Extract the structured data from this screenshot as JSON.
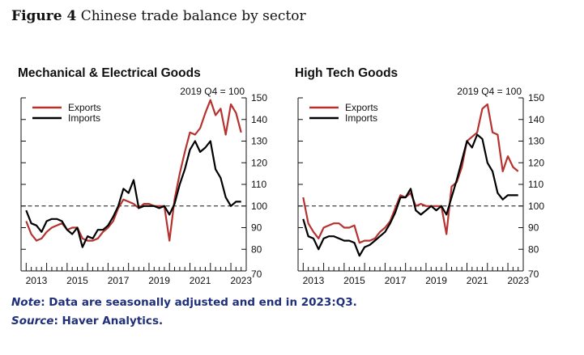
{
  "figure": {
    "label": "Figure 4",
    "title": "Chinese trade balance by sector"
  },
  "note": {
    "label": "Note",
    "text": ": Data are seasonally adjusted and end in 2023:Q3."
  },
  "source": {
    "label": "Source",
    "text": ": Haver Analytics."
  },
  "colors": {
    "exports": "#b5322f",
    "imports": "#000000"
  },
  "chart_data": [
    {
      "type": "line",
      "title": "Mechanical & Electrical Goods",
      "units_label": "2019 Q4 = 100",
      "ylim": [
        70,
        150
      ],
      "yticks": [
        70,
        80,
        90,
        100,
        110,
        120,
        130,
        140,
        150
      ],
      "xlim": [
        2012.75,
        2023.75
      ],
      "xticks": [
        "2013",
        "2015",
        "2017",
        "2019",
        "2021",
        "2023"
      ],
      "reference_line": 100,
      "legend": "top-left",
      "series": [
        {
          "name": "Exports",
          "x": [
            2013.0,
            2013.25,
            2013.5,
            2013.75,
            2014.0,
            2014.25,
            2014.5,
            2014.75,
            2015.0,
            2015.25,
            2015.5,
            2015.75,
            2016.0,
            2016.25,
            2016.5,
            2016.75,
            2017.0,
            2017.25,
            2017.5,
            2017.75,
            2018.0,
            2018.25,
            2018.5,
            2018.75,
            2019.0,
            2019.25,
            2019.5,
            2019.75,
            2020.0,
            2020.25,
            2020.5,
            2020.75,
            2021.0,
            2021.25,
            2021.5,
            2021.75,
            2022.0,
            2022.25,
            2022.5,
            2022.75,
            2023.0,
            2023.25,
            2023.5
          ],
          "values": [
            93,
            87,
            84,
            85,
            88,
            90,
            91,
            92,
            89,
            90,
            90,
            85,
            84,
            84,
            85,
            88,
            90,
            93,
            99,
            103,
            102,
            101,
            99,
            101,
            101,
            100,
            100,
            100,
            84,
            103,
            115,
            125,
            134,
            133,
            136,
            143,
            149,
            142,
            145,
            133,
            147,
            143,
            134
          ]
        },
        {
          "name": "Imports",
          "x": [
            2013.0,
            2013.25,
            2013.5,
            2013.75,
            2014.0,
            2014.25,
            2014.5,
            2014.75,
            2015.0,
            2015.25,
            2015.5,
            2015.75,
            2016.0,
            2016.25,
            2016.5,
            2016.75,
            2017.0,
            2017.25,
            2017.5,
            2017.75,
            2018.0,
            2018.25,
            2018.5,
            2018.75,
            2019.0,
            2019.25,
            2019.5,
            2019.75,
            2020.0,
            2020.25,
            2020.5,
            2020.75,
            2021.0,
            2021.25,
            2021.5,
            2021.75,
            2022.0,
            2022.25,
            2022.5,
            2022.75,
            2023.0,
            2023.25,
            2023.5
          ],
          "values": [
            98,
            92,
            91,
            88,
            93,
            94,
            94,
            93,
            89,
            87,
            90,
            81,
            86,
            85,
            89,
            89,
            91,
            95,
            100,
            108,
            106,
            112,
            99,
            100,
            100,
            100,
            99,
            100,
            96,
            101,
            110,
            117,
            126,
            130,
            125,
            127,
            130,
            117,
            113,
            104,
            100,
            102,
            102
          ]
        }
      ]
    },
    {
      "type": "line",
      "title": "High Tech Goods",
      "units_label": "2019 Q4 = 100",
      "ylim": [
        70,
        150
      ],
      "yticks": [
        70,
        80,
        90,
        100,
        110,
        120,
        130,
        140,
        150
      ],
      "xlim": [
        2012.75,
        2023.75
      ],
      "xticks": [
        "2013",
        "2015",
        "2017",
        "2019",
        "2021",
        "2023"
      ],
      "reference_line": 100,
      "legend": "top-left",
      "series": [
        {
          "name": "Exports",
          "x": [
            2013.0,
            2013.25,
            2013.5,
            2013.75,
            2014.0,
            2014.25,
            2014.5,
            2014.75,
            2015.0,
            2015.25,
            2015.5,
            2015.75,
            2016.0,
            2016.25,
            2016.5,
            2016.75,
            2017.0,
            2017.25,
            2017.5,
            2017.75,
            2018.0,
            2018.25,
            2018.5,
            2018.75,
            2019.0,
            2019.25,
            2019.5,
            2019.75,
            2020.0,
            2020.25,
            2020.5,
            2020.75,
            2021.0,
            2021.25,
            2021.5,
            2021.75,
            2022.0,
            2022.25,
            2022.5,
            2022.75,
            2023.0,
            2023.25,
            2023.5
          ],
          "values": [
            104,
            92,
            88,
            85,
            90,
            91,
            92,
            92,
            90,
            90,
            91,
            83,
            84,
            84,
            85,
            88,
            90,
            93,
            99,
            105,
            104,
            106,
            100,
            101,
            100,
            100,
            100,
            100,
            87,
            109,
            111,
            118,
            130,
            132,
            134,
            145,
            147,
            134,
            133,
            116,
            123,
            118,
            116
          ]
        },
        {
          "name": "Imports",
          "x": [
            2013.0,
            2013.25,
            2013.5,
            2013.75,
            2014.0,
            2014.25,
            2014.5,
            2014.75,
            2015.0,
            2015.25,
            2015.5,
            2015.75,
            2016.0,
            2016.25,
            2016.5,
            2016.75,
            2017.0,
            2017.25,
            2017.5,
            2017.75,
            2018.0,
            2018.25,
            2018.5,
            2018.75,
            2019.0,
            2019.25,
            2019.5,
            2019.75,
            2020.0,
            2020.25,
            2020.5,
            2020.75,
            2021.0,
            2021.25,
            2021.5,
            2021.75,
            2022.0,
            2022.25,
            2022.5,
            2022.75,
            2023.0,
            2023.25,
            2023.5
          ],
          "values": [
            94,
            86,
            85,
            80,
            85,
            86,
            86,
            85,
            84,
            84,
            83,
            77,
            81,
            82,
            84,
            86,
            88,
            92,
            97,
            104,
            104,
            108,
            98,
            96,
            98,
            100,
            98,
            100,
            96,
            104,
            112,
            121,
            130,
            127,
            133,
            131,
            120,
            116,
            106,
            103,
            105,
            105,
            105
          ]
        }
      ]
    }
  ]
}
